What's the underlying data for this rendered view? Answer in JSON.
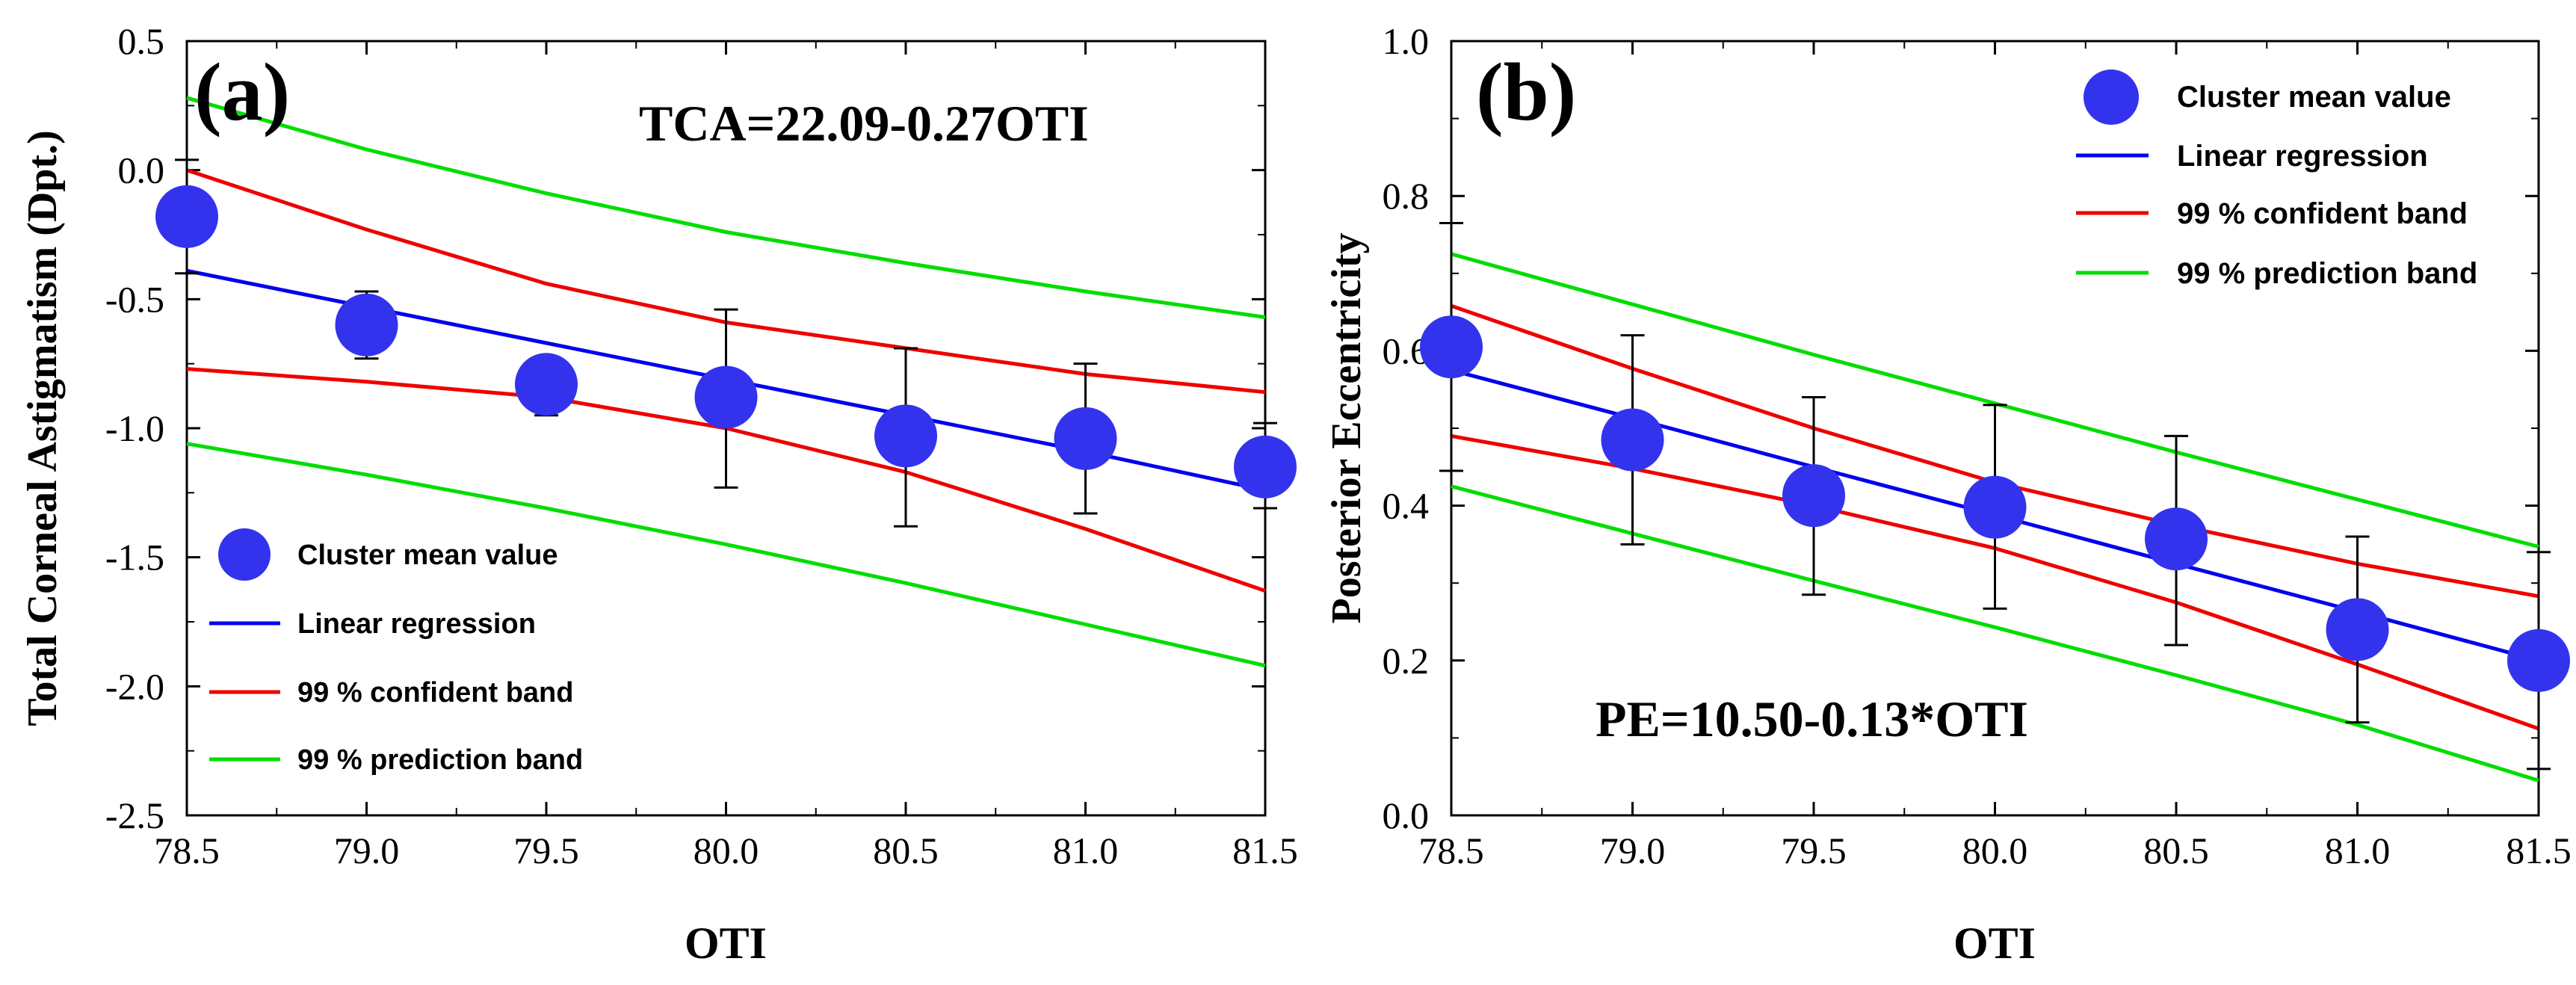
{
  "chart_data": [
    {
      "type": "scatter",
      "panel_label": "(a)",
      "equation": "TCA=22.09-0.27OTI",
      "xlabel": "OTI",
      "ylabel": "Total Corneal Astigmatism (Dpt.)",
      "xlim": [
        78.5,
        81.5
      ],
      "ylim": [
        -2.5,
        0.5
      ],
      "xticks": [
        "78.5",
        "79.0",
        "79.5",
        "80.0",
        "80.5",
        "81.0",
        "81.5"
      ],
      "yticks": [
        "0.5",
        "0.0",
        "-0.5",
        "-1.0",
        "-1.5",
        "-2.0",
        "-2.5"
      ],
      "legend_position": "bottom-left",
      "legend": [
        "Cluster mean value",
        "Linear regression",
        "99 % confident band",
        "99 % prediction band"
      ],
      "colors": {
        "points": "#3333ee",
        "regression": "#0000ee",
        "confidence": "#ee0000",
        "prediction": "#00dd00"
      },
      "points": {
        "x": [
          78.5,
          79.0,
          79.5,
          80.0,
          80.5,
          81.0,
          81.5
        ],
        "y": [
          -0.18,
          -0.6,
          -0.83,
          -0.88,
          -1.03,
          -1.04,
          -1.15
        ],
        "err_low": [
          -0.4,
          -0.73,
          -0.95,
          -1.23,
          -1.38,
          -1.33,
          -1.31
        ],
        "err_high": [
          0.04,
          -0.47,
          -0.76,
          -0.54,
          -0.69,
          -0.75,
          -0.98
        ]
      },
      "series": [
        {
          "name": "Linear regression",
          "role": "regression",
          "x": [
            78.5,
            79.0,
            79.5,
            80.0,
            80.5,
            81.0,
            81.5
          ],
          "y": [
            -0.39,
            -0.53,
            -0.67,
            -0.81,
            -0.95,
            -1.09,
            -1.24
          ]
        },
        {
          "name": "99 % confident band",
          "role": "confidence-upper",
          "x": [
            78.5,
            79.0,
            79.5,
            80.0,
            80.5,
            81.0,
            81.5
          ],
          "y": [
            0.0,
            -0.23,
            -0.44,
            -0.59,
            -0.69,
            -0.79,
            -0.86
          ]
        },
        {
          "name": "99 % confident band",
          "role": "confidence-lower",
          "x": [
            78.5,
            79.0,
            79.5,
            80.0,
            80.5,
            81.0,
            81.5
          ],
          "y": [
            -0.77,
            -0.82,
            -0.88,
            -1.0,
            -1.17,
            -1.39,
            -1.63
          ]
        },
        {
          "name": "99 % prediction band",
          "role": "prediction-upper",
          "x": [
            78.5,
            79.0,
            79.5,
            80.0,
            80.5,
            81.0,
            81.5
          ],
          "y": [
            0.28,
            0.08,
            -0.09,
            -0.24,
            -0.36,
            -0.47,
            -0.57
          ]
        },
        {
          "name": "99 % prediction band",
          "role": "prediction-lower",
          "x": [
            78.5,
            79.0,
            79.5,
            80.0,
            80.5,
            81.0,
            81.5
          ],
          "y": [
            -1.06,
            -1.18,
            -1.31,
            -1.45,
            -1.6,
            -1.76,
            -1.92
          ]
        }
      ]
    },
    {
      "type": "scatter",
      "panel_label": "(b)",
      "equation": "PE=10.50-0.13*OTI",
      "xlabel": "OTI",
      "ylabel": "Posterior Eccentricity",
      "xlim": [
        78.5,
        81.5
      ],
      "ylim": [
        0.0,
        1.0
      ],
      "xticks": [
        "78.5",
        "79.0",
        "79.5",
        "80.0",
        "80.5",
        "81.0",
        "81.5"
      ],
      "yticks": [
        "1.0",
        "0.8",
        "0.6",
        "0.4",
        "0.2",
        "0.0"
      ],
      "legend_position": "top-right",
      "legend": [
        "Cluster mean value",
        "Linear regression",
        "99 % confident band",
        "99 % prediction band"
      ],
      "colors": {
        "points": "#3333ee",
        "regression": "#0000ee",
        "confidence": "#ee0000",
        "prediction": "#00dd00"
      },
      "points": {
        "x": [
          78.5,
          79.0,
          79.5,
          80.0,
          80.5,
          81.0,
          81.5
        ],
        "y": [
          0.605,
          0.485,
          0.413,
          0.398,
          0.357,
          0.24,
          0.2
        ],
        "err_low": [
          0.445,
          0.35,
          0.285,
          0.267,
          0.22,
          0.12,
          0.06
        ],
        "err_high": [
          0.765,
          0.62,
          0.54,
          0.53,
          0.49,
          0.36,
          0.34
        ]
      },
      "series": [
        {
          "name": "Linear regression",
          "role": "regression",
          "x": [
            78.5,
            79.0,
            79.5,
            80.0,
            80.5,
            81.0,
            81.5
          ],
          "y": [
            0.575,
            0.513,
            0.45,
            0.388,
            0.325,
            0.263,
            0.2
          ]
        },
        {
          "name": "99 % confident band",
          "role": "confidence-upper",
          "x": [
            78.5,
            79.0,
            79.5,
            80.0,
            80.5,
            81.0,
            81.5
          ],
          "y": [
            0.658,
            0.577,
            0.5,
            0.43,
            0.375,
            0.325,
            0.283
          ]
        },
        {
          "name": "99 % confident band",
          "role": "confidence-lower",
          "x": [
            78.5,
            79.0,
            79.5,
            80.0,
            80.5,
            81.0,
            81.5
          ],
          "y": [
            0.49,
            0.448,
            0.4,
            0.345,
            0.275,
            0.195,
            0.112
          ]
        },
        {
          "name": "99 % prediction band",
          "role": "prediction-upper",
          "x": [
            78.5,
            79.0,
            79.5,
            80.0,
            80.5,
            81.0,
            81.5
          ],
          "y": [
            0.725,
            0.66,
            0.595,
            0.532,
            0.469,
            0.408,
            0.347
          ]
        },
        {
          "name": "99 % prediction band",
          "role": "prediction-lower",
          "x": [
            78.5,
            79.0,
            79.5,
            80.0,
            80.5,
            81.0,
            81.5
          ],
          "y": [
            0.425,
            0.364,
            0.303,
            0.243,
            0.181,
            0.117,
            0.045
          ]
        }
      ]
    }
  ]
}
